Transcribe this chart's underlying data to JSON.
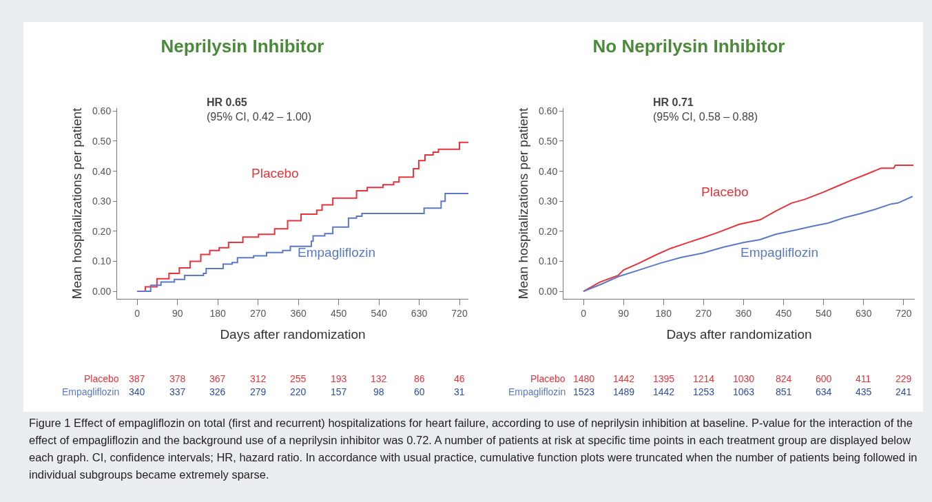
{
  "chart_data": [
    {
      "type": "step",
      "title": "Neprilysin Inhibitor",
      "xlabel": "Days after randomization",
      "ylabel": "Mean hospitalizations per patient",
      "xlim": [
        -45,
        740
      ],
      "xticks": [
        0,
        90,
        180,
        270,
        360,
        450,
        540,
        630,
        720
      ],
      "ylim": [
        -0.025,
        0.61
      ],
      "yticks": [
        {
          "value": 0,
          "label": "0.00"
        },
        {
          "value": 0.1,
          "label": "0.10"
        },
        {
          "value": 0.2,
          "label": "0.20"
        },
        {
          "value": 0.3,
          "label": "0.30"
        },
        {
          "value": 0.4,
          "label": "0.40"
        },
        {
          "value": 0.5,
          "label": "0.50"
        },
        {
          "value": 0.6,
          "label": "0.60"
        }
      ],
      "grid": false,
      "legend": false,
      "marker": "none",
      "line_style": "solid",
      "series": [
        {
          "name": "Placebo",
          "color": "#e8323c",
          "x": [
            0,
            18,
            44,
            71,
            94,
            118,
            142,
            162,
            183,
            204,
            236,
            271,
            307,
            336,
            366,
            401,
            413,
            437,
            475,
            490,
            514,
            549,
            573,
            585,
            608,
            617,
            629,
            643,
            661,
            673,
            708,
            720,
            740
          ],
          "values": [
            0,
            0.015,
            0.042,
            0.06,
            0.078,
            0.1,
            0.123,
            0.136,
            0.145,
            0.163,
            0.181,
            0.19,
            0.208,
            0.235,
            0.257,
            0.27,
            0.288,
            0.31,
            0.31,
            0.335,
            0.346,
            0.355,
            0.364,
            0.38,
            0.38,
            0.408,
            0.435,
            0.454,
            0.463,
            0.473,
            0.473,
            0.496,
            0.496
          ]
        },
        {
          "name": "Empagliflozin",
          "color": "#5b78c6",
          "x": [
            0,
            30,
            53,
            83,
            106,
            148,
            154,
            186,
            192,
            212,
            224,
            260,
            289,
            325,
            342,
            372,
            389,
            393,
            419,
            437,
            469,
            472,
            490,
            502,
            638,
            641,
            673,
            679,
            688,
            740
          ],
          "values": [
            0,
            0.02,
            0.031,
            0.04,
            0.053,
            0.06,
            0.076,
            0.076,
            0.091,
            0.096,
            0.112,
            0.118,
            0.129,
            0.136,
            0.15,
            0.15,
            0.167,
            0.185,
            0.192,
            0.214,
            0.214,
            0.244,
            0.25,
            0.259,
            0.259,
            0.277,
            0.277,
            0.3,
            0.326,
            0.326
          ]
        }
      ],
      "annotations": [
        "HR 0.65",
        "(95% CI, 0.42 – 1.00)",
        "387",
        "378",
        "367",
        "312",
        "255",
        "193",
        "132",
        "86",
        "46",
        "340",
        "337",
        "326",
        "279",
        "220",
        "157",
        "98",
        "60",
        "31"
      ]
    },
    {
      "type": "line",
      "title": "No Neprilysin Inhibitor",
      "xlabel": "Days after randomization",
      "ylabel": "Mean hospitalizations per patient",
      "xlim": [
        -45,
        745
      ],
      "xticks": [
        0,
        90,
        180,
        270,
        360,
        450,
        540,
        630,
        720
      ],
      "ylim": [
        -0.025,
        0.61
      ],
      "yticks": [
        {
          "value": 0,
          "label": "0.00"
        },
        {
          "value": 0.1,
          "label": "0.10"
        },
        {
          "value": 0.2,
          "label": "0.20"
        },
        {
          "value": 0.3,
          "label": "0.30"
        },
        {
          "value": 0.4,
          "label": "0.40"
        },
        {
          "value": 0.5,
          "label": "0.50"
        },
        {
          "value": 0.6,
          "label": "0.60"
        }
      ],
      "grid": false,
      "legend": false,
      "marker": "none",
      "line_style": "solid",
      "series": [
        {
          "name": "Placebo",
          "color": "#e8323c",
          "x": [
            0,
            37,
            78,
            90,
            125,
            161,
            196,
            232,
            267,
            302,
            350,
            397,
            432,
            468,
            497,
            539,
            574,
            609,
            645,
            669,
            698,
            701,
            742
          ],
          "values": [
            0,
            0.031,
            0.053,
            0.071,
            0.094,
            0.12,
            0.143,
            0.161,
            0.178,
            0.196,
            0.223,
            0.238,
            0.267,
            0.294,
            0.306,
            0.33,
            0.352,
            0.374,
            0.395,
            0.41,
            0.41,
            0.42,
            0.42
          ]
        },
        {
          "name": "Empagliflozin",
          "color": "#5b78c6",
          "x": [
            0,
            37,
            78,
            125,
            173,
            220,
            267,
            314,
            361,
            397,
            432,
            479,
            515,
            550,
            586,
            621,
            656,
            692,
            707,
            740
          ],
          "values": [
            0,
            0.022,
            0.049,
            0.071,
            0.094,
            0.113,
            0.127,
            0.147,
            0.163,
            0.172,
            0.19,
            0.205,
            0.217,
            0.227,
            0.245,
            0.258,
            0.273,
            0.291,
            0.294,
            0.316
          ]
        }
      ],
      "annotations": [
        "HR 0.71",
        "(95% CI, 0.58 – 0.88)",
        "1480",
        "1442",
        "1395",
        "1214",
        "1030",
        "824",
        "600",
        "411",
        "229",
        "1523",
        "1489",
        "1442",
        "1253",
        "1063",
        "851",
        "634",
        "435",
        "241",
        "Figure 1 Effect of empagliflozin on total (first and recurrent) hospitalizations for heart failure, according to use of neprilysin inhibition at baseline. P-value for the interaction of the effect of empagliflozin and the background use of a neprilysin inhibitor was 0.72. A number of patients at risk at specific time points in each treatment group are displayed below each graph. CI, confidence intervals; HR, hazard ratio. In accordance with usual practice, cumulative function plots were truncated when the number of patients being followed in individual subgroups became extremely sparse."
      ]
    }
  ]
}
